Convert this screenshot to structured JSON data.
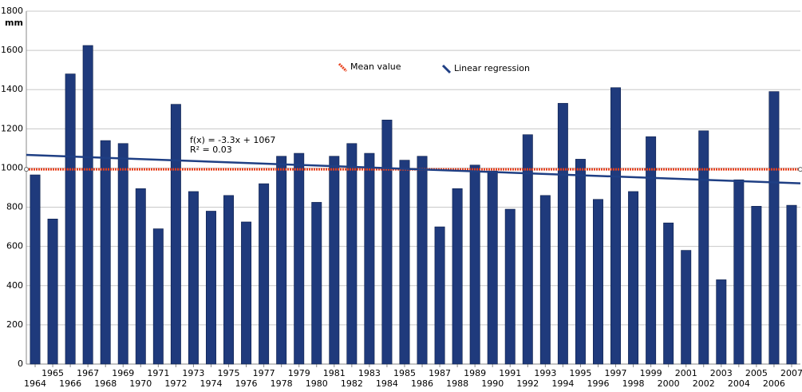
{
  "chart_data": {
    "type": "bar",
    "y_unit": "mm",
    "categories": [
      "1964",
      "1965",
      "1966",
      "1967",
      "1968",
      "1969",
      "1970",
      "1971",
      "1972",
      "1973",
      "1974",
      "1975",
      "1976",
      "1977",
      "1978",
      "1979",
      "1980",
      "1981",
      "1982",
      "1983",
      "1984",
      "1985",
      "1986",
      "1987",
      "1988",
      "1989",
      "1990",
      "1991",
      "1992",
      "1993",
      "1994",
      "1995",
      "1996",
      "1997",
      "1998",
      "1999",
      "2000",
      "2001",
      "2002",
      "2003",
      "2004",
      "2005",
      "2006",
      "2007"
    ],
    "values": [
      965,
      740,
      1480,
      1625,
      1140,
      1125,
      895,
      690,
      1325,
      880,
      780,
      860,
      725,
      920,
      1060,
      1075,
      825,
      1060,
      1125,
      1075,
      1245,
      1040,
      1060,
      700,
      895,
      1015,
      985,
      790,
      1170,
      860,
      1330,
      1045,
      840,
      1410,
      880,
      1160,
      720,
      580,
      1190,
      430,
      940,
      805,
      1390,
      810
    ],
    "color": "#1f3a7c",
    "mean": {
      "name": "Mean value",
      "value": 993,
      "color": "#e8401c"
    },
    "regression": {
      "name": "Linear regression",
      "color": "#1f3f84",
      "equation": "f(x) = -3.3x + 1067",
      "r2": "R² = 0.03",
      "slope": -3.3,
      "intercept": 1067
    },
    "ylim": [
      0,
      1800
    ],
    "yticks": [
      0,
      200,
      400,
      600,
      800,
      1000,
      1200,
      1400,
      1600,
      1800
    ],
    "grid": true
  }
}
